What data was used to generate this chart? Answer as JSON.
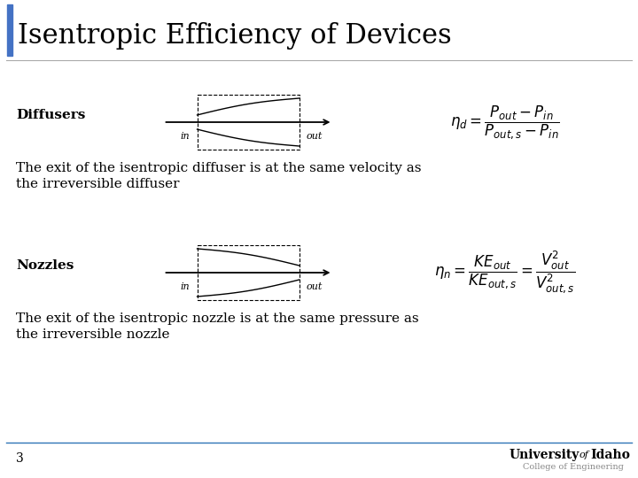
{
  "title": "Isentropic Efficiency of Devices",
  "title_bar_color": "#4472C4",
  "background_color": "#FFFFFF",
  "slide_number": "3",
  "section1_label": "Diffusers",
  "section1_desc_line1": "The exit of the isentropic diffuser is at the same velocity as",
  "section1_desc_line2": "the irreversible diffuser",
  "section2_label": "Nozzles",
  "section2_desc_line1": "The exit of the isentropic nozzle is at the same pressure as",
  "section2_desc_line2": "the irreversible nozzle",
  "uni_sub": "College of Engineering",
  "footer_line_color": "#2E75B6",
  "header_line_color": "#AAAAAA",
  "label_fontsize": 11,
  "desc_fontsize": 11,
  "title_fontsize": 22
}
